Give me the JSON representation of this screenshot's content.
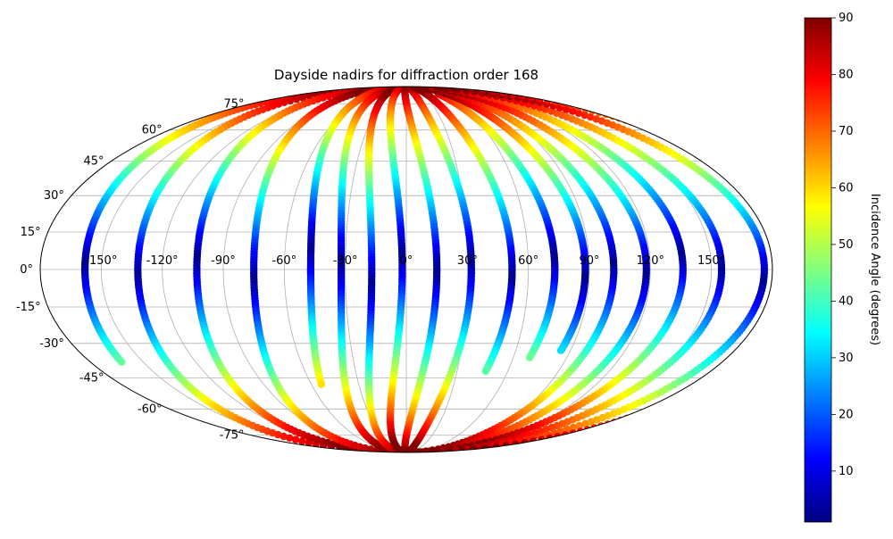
{
  "chart_data": {
    "type": "scatter",
    "title": "Dayside nadirs for diffraction order 168",
    "projection": "mollweide",
    "xlim": [
      -180,
      180
    ],
    "ylim": [
      -90,
      90
    ],
    "grid": true,
    "lon_ticks": [
      -150,
      -120,
      -90,
      -60,
      -30,
      0,
      30,
      60,
      90,
      120,
      150
    ],
    "lon_tick_labels": [
      "-150°",
      "-120°",
      "-90°",
      "-60°",
      "-30°",
      "0°",
      "30°",
      "60°",
      "90°",
      "120°",
      "150°"
    ],
    "lat_ticks": [
      75,
      60,
      45,
      30,
      15,
      0,
      -15,
      -30,
      -45,
      -60,
      -75
    ],
    "lat_tick_labels": [
      "75°",
      "60°",
      "45°",
      "30°",
      "15°",
      "0°",
      "-15°",
      "-30°",
      "-45°",
      "-60°",
      "-75°"
    ],
    "colorbar": {
      "label": "Incidence Angle (degrees)",
      "range": [
        1,
        90
      ],
      "ticks": [
        10,
        20,
        30,
        40,
        50,
        60,
        70,
        80,
        90
      ],
      "tick_labels": [
        "10",
        "20",
        "30",
        "40",
        "50",
        "60",
        "70",
        "80",
        "90"
      ],
      "colormap": "jet"
    },
    "series": [
      {
        "lon_eq": -178,
        "lat_start": 88,
        "lat_end": -38,
        "noon_lat": 2
      },
      {
        "lon_eq": -152,
        "lat_start": 88,
        "lat_end": -89,
        "noon_lat": -2
      },
      {
        "lon_eq": -123,
        "lat_start": 88,
        "lat_end": -89,
        "noon_lat": 4
      },
      {
        "lon_eq": -95,
        "lat_start": 88,
        "lat_end": -89,
        "noon_lat": -4
      },
      {
        "lon_eq": -67,
        "lat_start": 88,
        "lat_end": -48,
        "noon_lat": 8
      },
      {
        "lon_eq": -52,
        "lat_start": 88,
        "lat_end": -89,
        "noon_lat": 2
      },
      {
        "lon_eq": -37,
        "lat_start": 88,
        "lat_end": -89,
        "noon_lat": -6
      },
      {
        "lon_eq": -22,
        "lat_start": 88,
        "lat_end": -89,
        "noon_lat": 6
      },
      {
        "lon_eq": -5,
        "lat_start": 88,
        "lat_end": -89,
        "noon_lat": -1
      },
      {
        "lon_eq": 12,
        "lat_start": 88,
        "lat_end": -89,
        "noon_lat": 3
      },
      {
        "lon_eq": 32,
        "lat_start": 88,
        "lat_end": -42,
        "noon_lat": -3
      },
      {
        "lon_eq": 53,
        "lat_start": 82,
        "lat_end": -36,
        "noon_lat": 5
      },
      {
        "lon_eq": 68,
        "lat_start": 88,
        "lat_end": -33,
        "noon_lat": -4
      },
      {
        "lon_eq": 82,
        "lat_start": 88,
        "lat_end": -89,
        "noon_lat": 2
      },
      {
        "lon_eq": 98,
        "lat_start": 88,
        "lat_end": -89,
        "noon_lat": -2
      },
      {
        "lon_eq": 116,
        "lat_start": 88,
        "lat_end": -89,
        "noon_lat": 6
      },
      {
        "lon_eq": 135,
        "lat_start": 88,
        "lat_end": -89,
        "noon_lat": 0
      },
      {
        "lon_eq": 156,
        "lat_start": 88,
        "lat_end": -89,
        "noon_lat": -5
      },
      {
        "lon_eq": 178,
        "lat_start": 86,
        "lat_end": -89,
        "noon_lat": 3
      }
    ]
  }
}
